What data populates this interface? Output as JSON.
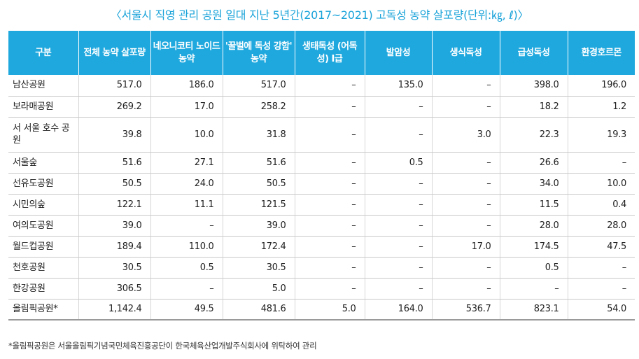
{
  "title": "〈서울시 직영 관리 공원 일대 지난 5년간(2017~2021) 고독성 농약 살포량(단위:㎏, ℓ)〉",
  "table": {
    "headers": [
      "구분",
      "전체 농약 살포량",
      "네오니코티 노이드 농약",
      "'꿀벌에 독성 강함' 농약",
      "생태독성 (어독성) I급",
      "발암성",
      "생식독성",
      "급성독성",
      "환경호르몬"
    ],
    "rows": [
      [
        "남산공원",
        "517.0",
        "186.0",
        "517.0",
        "–",
        "135.0",
        "–",
        "398.0",
        "196.0"
      ],
      [
        "보라매공원",
        "269.2",
        "17.0",
        "258.2",
        "–",
        "–",
        "–",
        "18.2",
        "1.2"
      ],
      [
        "서 서울 호수 공원",
        "39.8",
        "10.0",
        "31.8",
        "–",
        "–",
        "3.0",
        "22.3",
        "19.3"
      ],
      [
        "서울숲",
        "51.6",
        "27.1",
        "51.6",
        "–",
        "0.5",
        "–",
        "26.6",
        "–"
      ],
      [
        "선유도공원",
        "50.5",
        "24.0",
        "50.5",
        "–",
        "–",
        "–",
        "34.0",
        "10.0"
      ],
      [
        "시민의숲",
        "122.1",
        "11.1",
        "121.5",
        "–",
        "–",
        "–",
        "11.5",
        "0.4"
      ],
      [
        "여의도공원",
        "39.0",
        "–",
        "39.0",
        "–",
        "–",
        "–",
        "28.0",
        "28.0"
      ],
      [
        "월드컵공원",
        "189.4",
        "110.0",
        "172.4",
        "–",
        "–",
        "17.0",
        "174.5",
        "47.5"
      ],
      [
        "천호공원",
        "30.5",
        "0.5",
        "30.5",
        "–",
        "–",
        "–",
        "0.5",
        "–"
      ],
      [
        "한강공원",
        "306.5",
        "–",
        "5.0",
        "–",
        "–",
        "–",
        "–",
        "–"
      ],
      [
        "올림픽공원*",
        "1,142.4",
        "49.5",
        "481.6",
        "5.0",
        "164.0",
        "536.7",
        "823.1",
        "54.0"
      ]
    ]
  },
  "footnote": "*올림픽공원은 서울올림픽기념국민체육진흥공단이 한국체육산업개발주식회사에 위탁하여 관리"
}
